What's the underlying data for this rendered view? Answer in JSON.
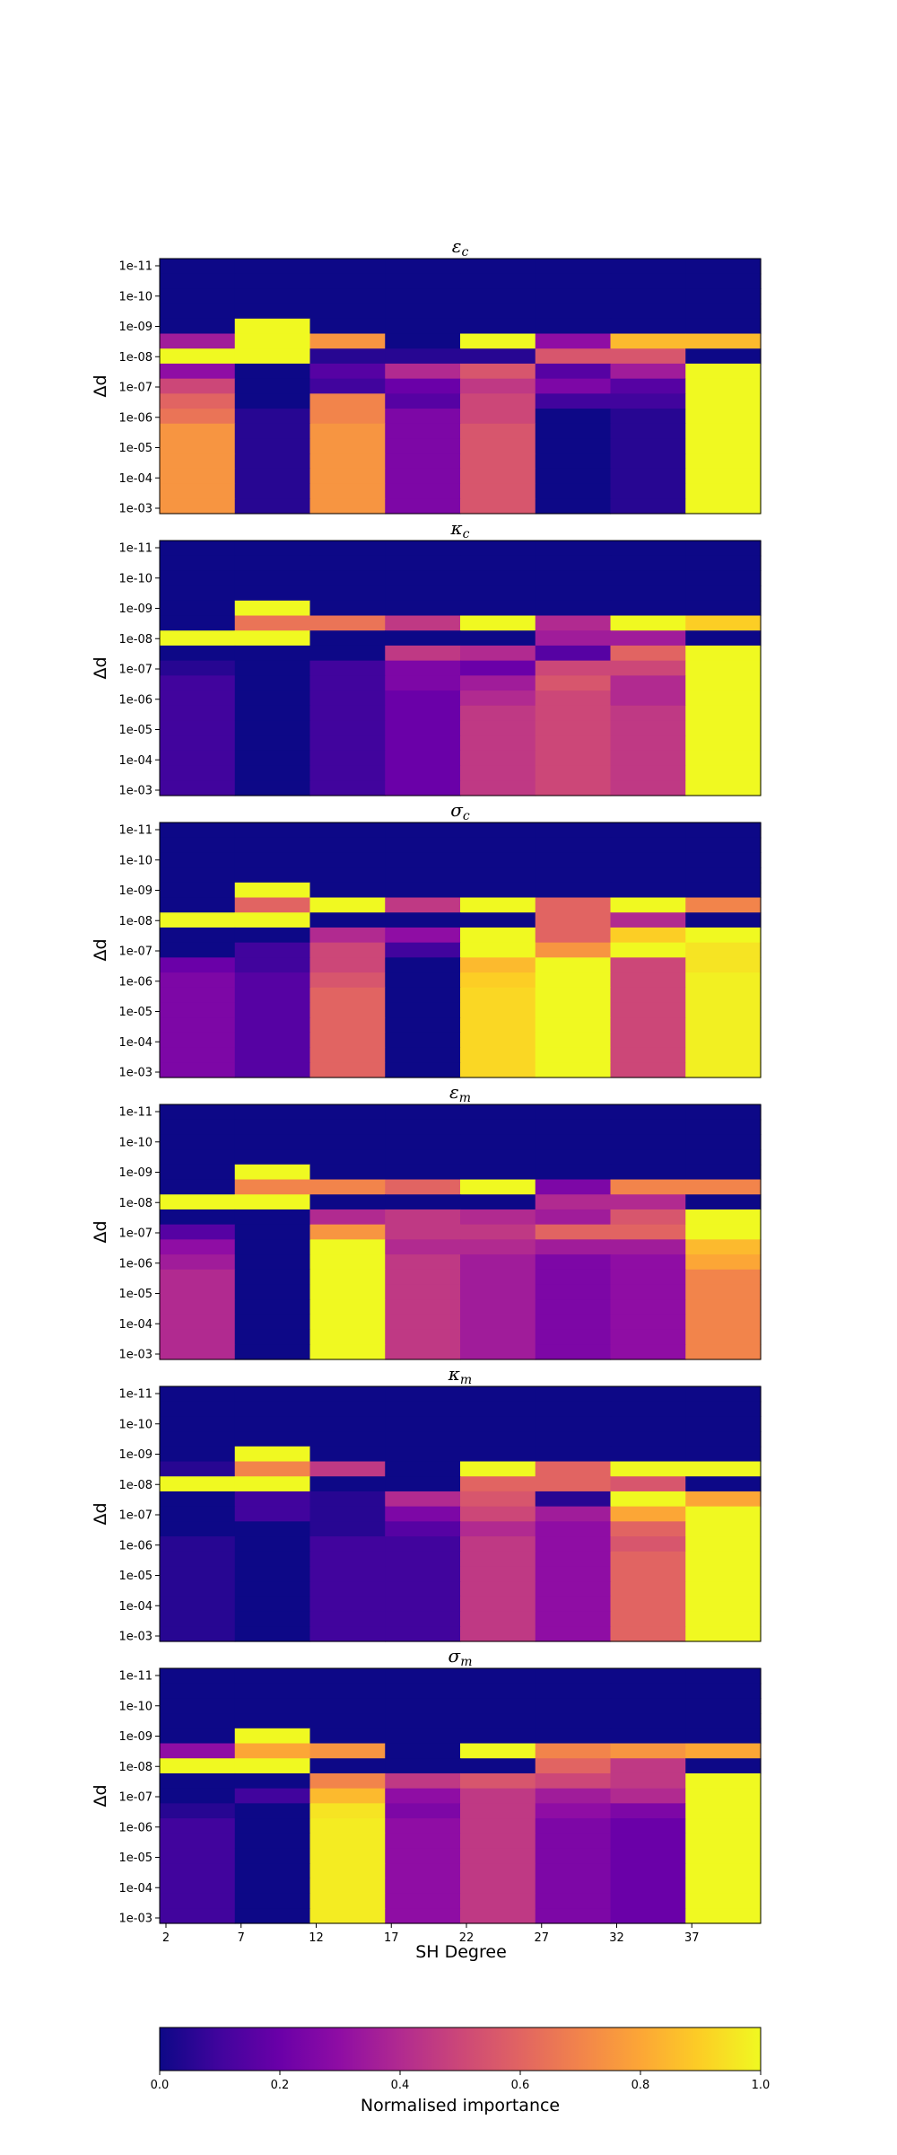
{
  "chart_data": {
    "type": "heatmap",
    "xlabel": "SH Degree",
    "ylabel": "Δd",
    "x_ticks": [
      "2",
      "7",
      "12",
      "17",
      "22",
      "27",
      "32",
      "37"
    ],
    "y_ticks": [
      "1e-11",
      "1e-10",
      "1e-09",
      "1e-08",
      "1e-07",
      "1e-06",
      "1e-05",
      "1e-04",
      "1e-03"
    ],
    "x_columns": [
      "2",
      "7",
      "12",
      "17",
      "22",
      "27",
      "32",
      "37"
    ],
    "rows_per_panel": 17,
    "colormap": "plasma",
    "colorbar": {
      "label": "Normalised importance",
      "ticks": [
        "0.0",
        "0.2",
        "0.4",
        "0.6",
        "0.8",
        "1.0"
      ],
      "range": [
        0.0,
        1.0
      ]
    },
    "panels": [
      {
        "title_base": "ε",
        "title_sub": "c",
        "values": [
          [
            0,
            0,
            0,
            0,
            0,
            0,
            0,
            0
          ],
          [
            0,
            0,
            0,
            0,
            0,
            0,
            0,
            0
          ],
          [
            0,
            0,
            0,
            0,
            0,
            0,
            0,
            0
          ],
          [
            0,
            0,
            0,
            0,
            0,
            0,
            0,
            0
          ],
          [
            0,
            1,
            0,
            0,
            0,
            0,
            0,
            0
          ],
          [
            0.35,
            1,
            0.75,
            0,
            1,
            0.3,
            0.85,
            0.85
          ],
          [
            1,
            1,
            0.05,
            0.05,
            0.05,
            0.55,
            0.55,
            0
          ],
          [
            0.3,
            0,
            0.15,
            0.4,
            0.55,
            0.15,
            0.35,
            1
          ],
          [
            0.5,
            0,
            0.1,
            0.2,
            0.45,
            0.25,
            0.15,
            1
          ],
          [
            0.6,
            0,
            0.7,
            0.15,
            0.5,
            0.1,
            0.1,
            1
          ],
          [
            0.65,
            0.05,
            0.7,
            0.25,
            0.5,
            0,
            0.05,
            1
          ],
          [
            0.75,
            0.05,
            0.75,
            0.25,
            0.55,
            0,
            0.05,
            1
          ],
          [
            0.75,
            0.05,
            0.75,
            0.25,
            0.55,
            0,
            0.05,
            1
          ],
          [
            0.75,
            0.05,
            0.75,
            0.25,
            0.55,
            0,
            0.05,
            1
          ],
          [
            0.75,
            0.05,
            0.75,
            0.25,
            0.55,
            0,
            0.05,
            1
          ],
          [
            0.75,
            0.05,
            0.75,
            0.25,
            0.55,
            0,
            0.05,
            1
          ],
          [
            0.75,
            0.05,
            0.75,
            0.25,
            0.55,
            0,
            0.05,
            1
          ]
        ]
      },
      {
        "title_base": "κ",
        "title_sub": "c",
        "values": [
          [
            0,
            0,
            0,
            0,
            0,
            0,
            0,
            0
          ],
          [
            0,
            0,
            0,
            0,
            0,
            0,
            0,
            0
          ],
          [
            0,
            0,
            0,
            0,
            0,
            0,
            0,
            0
          ],
          [
            0,
            0,
            0,
            0,
            0,
            0,
            0,
            0
          ],
          [
            0,
            1,
            0,
            0,
            0,
            0,
            0,
            0
          ],
          [
            0,
            0.65,
            0.65,
            0.45,
            1,
            0.4,
            1,
            0.9
          ],
          [
            1,
            1,
            0,
            0,
            0,
            0.35,
            0.35,
            0
          ],
          [
            0,
            0,
            0,
            0.45,
            0.4,
            0.15,
            0.6,
            1
          ],
          [
            0.05,
            0,
            0.1,
            0.25,
            0.2,
            0.5,
            0.5,
            1
          ],
          [
            0.1,
            0,
            0.1,
            0.25,
            0.35,
            0.55,
            0.4,
            1
          ],
          [
            0.1,
            0,
            0.1,
            0.2,
            0.4,
            0.5,
            0.4,
            1
          ],
          [
            0.1,
            0,
            0.1,
            0.2,
            0.45,
            0.5,
            0.45,
            1
          ],
          [
            0.1,
            0,
            0.1,
            0.2,
            0.45,
            0.5,
            0.45,
            1
          ],
          [
            0.1,
            0,
            0.1,
            0.2,
            0.45,
            0.5,
            0.45,
            1
          ],
          [
            0.1,
            0,
            0.1,
            0.2,
            0.45,
            0.5,
            0.45,
            1
          ],
          [
            0.1,
            0,
            0.1,
            0.2,
            0.45,
            0.5,
            0.45,
            1
          ],
          [
            0.1,
            0,
            0.1,
            0.2,
            0.45,
            0.5,
            0.45,
            1
          ]
        ]
      },
      {
        "title_base": "σ",
        "title_sub": "c",
        "values": [
          [
            0,
            0,
            0,
            0,
            0,
            0,
            0,
            0
          ],
          [
            0,
            0,
            0,
            0,
            0,
            0,
            0,
            0
          ],
          [
            0,
            0,
            0,
            0,
            0,
            0,
            0,
            0
          ],
          [
            0,
            0,
            0,
            0,
            0,
            0,
            0,
            0
          ],
          [
            0,
            1,
            0,
            0,
            0,
            0,
            0,
            0
          ],
          [
            0,
            0.6,
            1,
            0.45,
            1,
            0.6,
            1,
            0.7
          ],
          [
            1,
            1,
            0,
            0,
            0,
            0.6,
            0.4,
            0
          ],
          [
            0,
            0,
            0.4,
            0.3,
            1,
            0.6,
            0.9,
            1
          ],
          [
            0,
            0.1,
            0.5,
            0.1,
            1,
            0.75,
            1,
            0.95
          ],
          [
            0.2,
            0.1,
            0.5,
            0,
            0.85,
            1,
            0.5,
            0.95
          ],
          [
            0.25,
            0.15,
            0.55,
            0,
            0.9,
            1,
            0.5,
            0.98
          ],
          [
            0.25,
            0.15,
            0.6,
            0,
            0.92,
            1,
            0.5,
            0.98
          ],
          [
            0.25,
            0.15,
            0.6,
            0,
            0.92,
            1,
            0.5,
            0.98
          ],
          [
            0.25,
            0.15,
            0.6,
            0,
            0.92,
            1,
            0.5,
            0.98
          ],
          [
            0.25,
            0.15,
            0.6,
            0,
            0.92,
            1,
            0.5,
            0.98
          ],
          [
            0.25,
            0.15,
            0.6,
            0,
            0.92,
            1,
            0.5,
            0.98
          ],
          [
            0.25,
            0.15,
            0.6,
            0,
            0.92,
            1,
            0.5,
            0.98
          ]
        ]
      },
      {
        "title_base": "ε",
        "title_sub": "m",
        "values": [
          [
            0,
            0,
            0,
            0,
            0,
            0,
            0,
            0
          ],
          [
            0,
            0,
            0,
            0,
            0,
            0,
            0,
            0
          ],
          [
            0,
            0,
            0,
            0,
            0,
            0,
            0,
            0
          ],
          [
            0,
            0,
            0,
            0,
            0,
            0,
            0,
            0
          ],
          [
            0,
            1,
            0,
            0,
            0,
            0,
            0,
            0
          ],
          [
            0,
            0.7,
            0.7,
            0.6,
            1,
            0.25,
            0.7,
            0.7
          ],
          [
            1,
            1,
            0,
            0,
            0,
            0.4,
            0.4,
            0
          ],
          [
            0,
            0,
            0.4,
            0.45,
            0.4,
            0.35,
            0.55,
            1
          ],
          [
            0.15,
            0,
            0.75,
            0.45,
            0.45,
            0.6,
            0.6,
            1
          ],
          [
            0.3,
            0,
            1,
            0.4,
            0.4,
            0.35,
            0.35,
            0.85
          ],
          [
            0.35,
            0,
            1,
            0.45,
            0.35,
            0.25,
            0.3,
            0.8
          ],
          [
            0.4,
            0,
            1,
            0.45,
            0.35,
            0.25,
            0.3,
            0.7
          ],
          [
            0.4,
            0,
            1,
            0.45,
            0.35,
            0.25,
            0.3,
            0.7
          ],
          [
            0.4,
            0,
            1,
            0.45,
            0.35,
            0.25,
            0.3,
            0.7
          ],
          [
            0.4,
            0,
            1,
            0.45,
            0.35,
            0.25,
            0.3,
            0.7
          ],
          [
            0.4,
            0,
            1,
            0.45,
            0.35,
            0.25,
            0.3,
            0.7
          ],
          [
            0.4,
            0,
            1,
            0.45,
            0.35,
            0.25,
            0.3,
            0.7
          ]
        ]
      },
      {
        "title_base": "κ",
        "title_sub": "m",
        "values": [
          [
            0,
            0,
            0,
            0,
            0,
            0,
            0,
            0
          ],
          [
            0,
            0,
            0,
            0,
            0,
            0,
            0,
            0
          ],
          [
            0,
            0,
            0,
            0,
            0,
            0,
            0,
            0
          ],
          [
            0,
            0,
            0,
            0,
            0,
            0,
            0,
            0
          ],
          [
            0,
            1,
            0,
            0,
            0,
            0,
            0,
            0
          ],
          [
            0.05,
            0.7,
            0.45,
            0,
            1,
            0.6,
            1,
            1
          ],
          [
            1,
            1,
            0,
            0,
            0.6,
            0.6,
            0.55,
            0
          ],
          [
            0,
            0.1,
            0.05,
            0.4,
            0.55,
            0.05,
            1,
            0.8
          ],
          [
            0,
            0.1,
            0.05,
            0.25,
            0.5,
            0.35,
            0.8,
            1
          ],
          [
            0,
            0,
            0.05,
            0.15,
            0.4,
            0.3,
            0.6,
            1
          ],
          [
            0.05,
            0,
            0.1,
            0.1,
            0.45,
            0.3,
            0.55,
            1
          ],
          [
            0.05,
            0,
            0.1,
            0.1,
            0.45,
            0.3,
            0.6,
            1
          ],
          [
            0.05,
            0,
            0.1,
            0.1,
            0.45,
            0.3,
            0.6,
            1
          ],
          [
            0.05,
            0,
            0.1,
            0.1,
            0.45,
            0.3,
            0.6,
            1
          ],
          [
            0.05,
            0,
            0.1,
            0.1,
            0.45,
            0.3,
            0.6,
            1
          ],
          [
            0.05,
            0,
            0.1,
            0.1,
            0.45,
            0.3,
            0.6,
            1
          ],
          [
            0.05,
            0,
            0.1,
            0.1,
            0.45,
            0.3,
            0.6,
            1
          ]
        ]
      },
      {
        "title_base": "σ",
        "title_sub": "m",
        "values": [
          [
            0,
            0,
            0,
            0,
            0,
            0,
            0,
            0
          ],
          [
            0,
            0,
            0,
            0,
            0,
            0,
            0,
            0
          ],
          [
            0,
            0,
            0,
            0,
            0,
            0,
            0,
            0
          ],
          [
            0,
            0,
            0,
            0,
            0,
            0,
            0,
            0
          ],
          [
            0,
            1,
            0,
            0,
            0,
            0,
            0,
            0
          ],
          [
            0.3,
            0.8,
            0.75,
            0,
            1,
            0.7,
            0.75,
            0.8
          ],
          [
            1,
            1,
            0,
            0,
            0,
            0.6,
            0.45,
            0
          ],
          [
            0,
            0,
            0.7,
            0.45,
            0.55,
            0.5,
            0.45,
            1
          ],
          [
            0,
            0.1,
            0.85,
            0.3,
            0.45,
            0.35,
            0.4,
            1
          ],
          [
            0.05,
            0,
            0.95,
            0.25,
            0.45,
            0.3,
            0.25,
            1
          ],
          [
            0.1,
            0,
            0.97,
            0.3,
            0.45,
            0.25,
            0.2,
            1
          ],
          [
            0.1,
            0,
            0.97,
            0.3,
            0.45,
            0.25,
            0.2,
            1
          ],
          [
            0.1,
            0,
            0.97,
            0.3,
            0.45,
            0.25,
            0.2,
            1
          ],
          [
            0.1,
            0,
            0.97,
            0.3,
            0.45,
            0.25,
            0.2,
            1
          ],
          [
            0.1,
            0,
            0.97,
            0.3,
            0.45,
            0.25,
            0.2,
            1
          ],
          [
            0.1,
            0,
            0.97,
            0.3,
            0.45,
            0.25,
            0.2,
            1
          ],
          [
            0.1,
            0,
            0.97,
            0.3,
            0.45,
            0.25,
            0.2,
            1
          ]
        ]
      }
    ]
  }
}
